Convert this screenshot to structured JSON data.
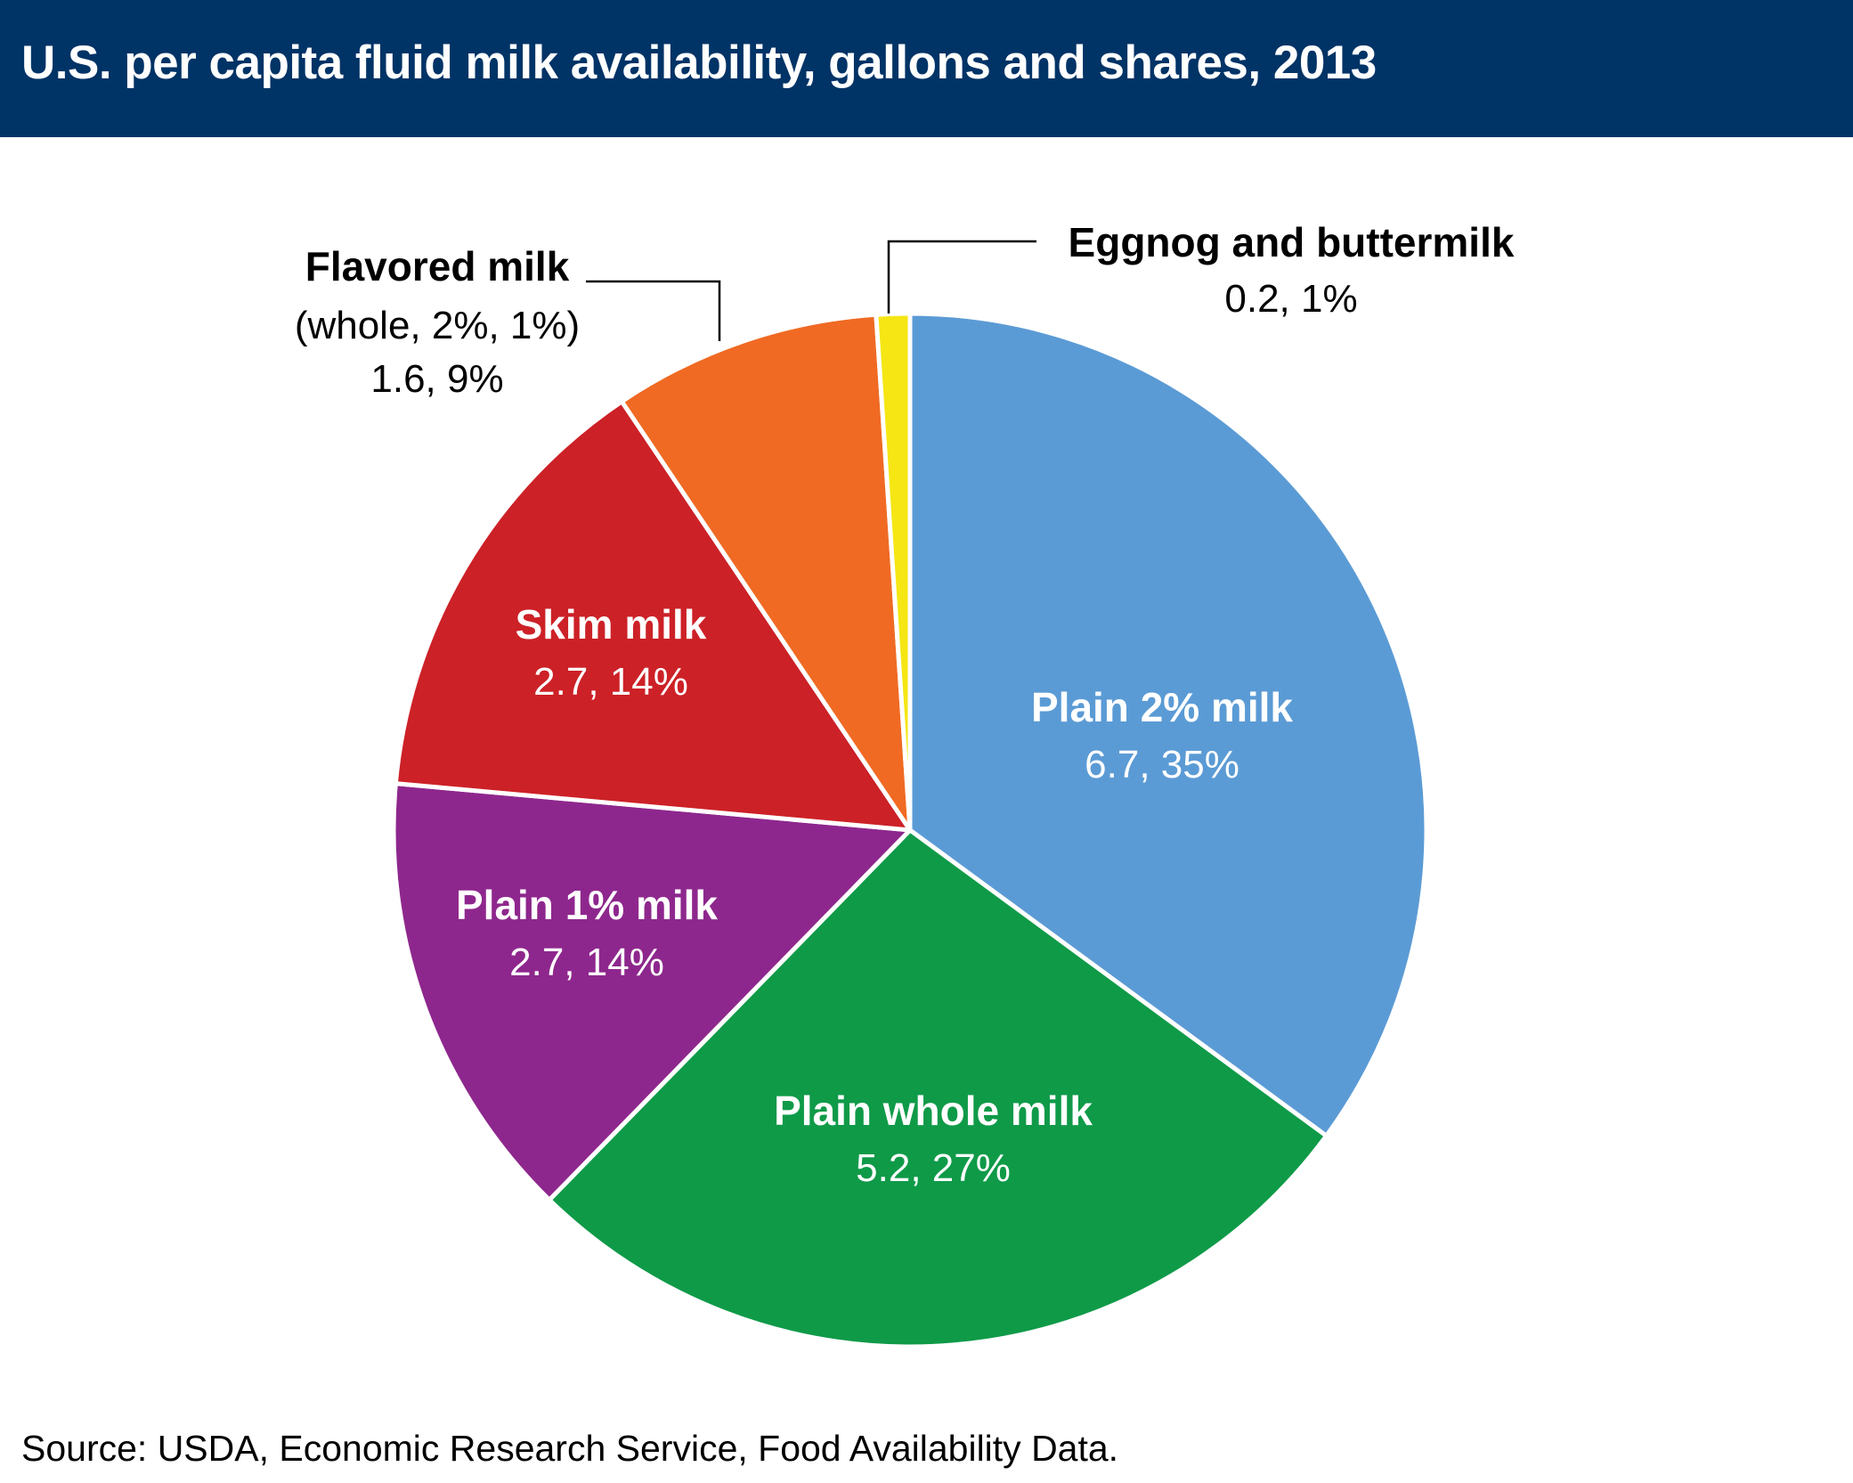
{
  "header": {
    "title": "U.S. per capita fluid milk availability, gallons and shares, 2013"
  },
  "footer": {
    "source": "Source: USDA, Economic Research Service, Food Availability Data."
  },
  "colors": {
    "header_bg": "#003366",
    "plain_2pct": "#5B9BD5",
    "plain_whole": "#0F9A48",
    "plain_1pct": "#8E278D",
    "skim": "#CC2127",
    "flavored": "#F06A23",
    "eggnog": "#F5E614"
  },
  "chart_data": {
    "type": "pie",
    "units": "gallons",
    "slices": [
      {
        "name": "Plain 2% milk",
        "value": 6.7,
        "share": 35,
        "value_label": "6.7, 35%",
        "color": "#5B9BD5",
        "label_style": "inside"
      },
      {
        "name": "Plain whole milk",
        "value": 5.2,
        "share": 27,
        "value_label": "5.2, 27%",
        "color": "#0F9A48",
        "label_style": "inside"
      },
      {
        "name": "Plain 1% milk",
        "value": 2.7,
        "share": 14,
        "value_label": "2.7, 14%",
        "color": "#8E278D",
        "label_style": "inside"
      },
      {
        "name": "Skim milk",
        "value": 2.7,
        "share": 14,
        "value_label": "2.7, 14%",
        "color": "#CC2127",
        "label_style": "inside"
      },
      {
        "name": "Flavored milk",
        "subname": "(whole, 2%, 1%)",
        "value": 1.6,
        "share": 9,
        "value_label": "1.6, 9%",
        "color": "#F06A23",
        "label_style": "callout-left"
      },
      {
        "name": "Eggnog and buttermilk",
        "value": 0.2,
        "share": 1,
        "value_label": "0.2, 1%",
        "color": "#F5E614",
        "label_style": "callout-right"
      }
    ]
  }
}
